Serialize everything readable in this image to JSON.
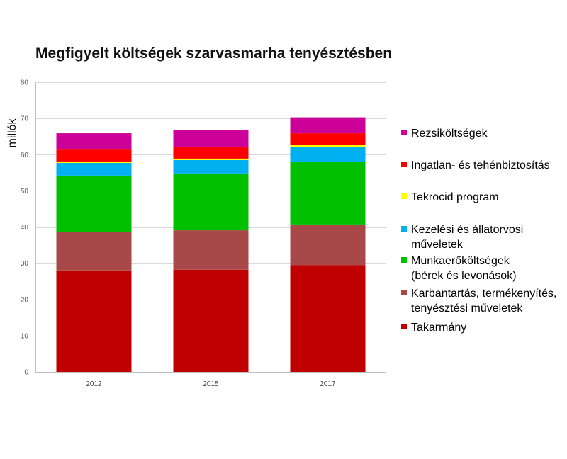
{
  "chart_data": {
    "type": "bar",
    "stacked": true,
    "title": "Megfigyelt költségek szarvasmarha tenyésztésben",
    "xlabel": "",
    "ylabel": "millók",
    "categories": [
      "2012",
      "2015",
      "2017"
    ],
    "ylim": [
      0,
      80
    ],
    "yticks": [
      0,
      10,
      20,
      30,
      40,
      50,
      60,
      70,
      80
    ],
    "grid": true,
    "legend_position": "right",
    "series": [
      {
        "name": "Takarmány",
        "color": "#c00000",
        "values": [
          28.0,
          28.2,
          29.5
        ]
      },
      {
        "name": "Karbantartás, termékenyítés, tenyésztési műveletek",
        "color": "#a84848",
        "values": [
          10.7,
          10.9,
          11.2
        ]
      },
      {
        "name": "Munkaerőköltségek (bérek és levonások)",
        "color": "#00c000",
        "values": [
          15.5,
          15.7,
          17.4
        ]
      },
      {
        "name": "Kezelési és állatorvosi műveletek",
        "color": "#00b0f0",
        "values": [
          3.5,
          3.7,
          3.9
        ]
      },
      {
        "name": "Tekrocid program",
        "color": "#ffff00",
        "values": [
          0.4,
          0.4,
          0.6
        ]
      },
      {
        "name": "Ingatlan- és tehénbiztosítás",
        "color": "#ff0000",
        "values": [
          3.3,
          3.1,
          3.3
        ]
      },
      {
        "name": "Rezsiköltségek",
        "color": "#cc0099",
        "values": [
          4.5,
          4.7,
          4.4
        ]
      }
    ]
  }
}
